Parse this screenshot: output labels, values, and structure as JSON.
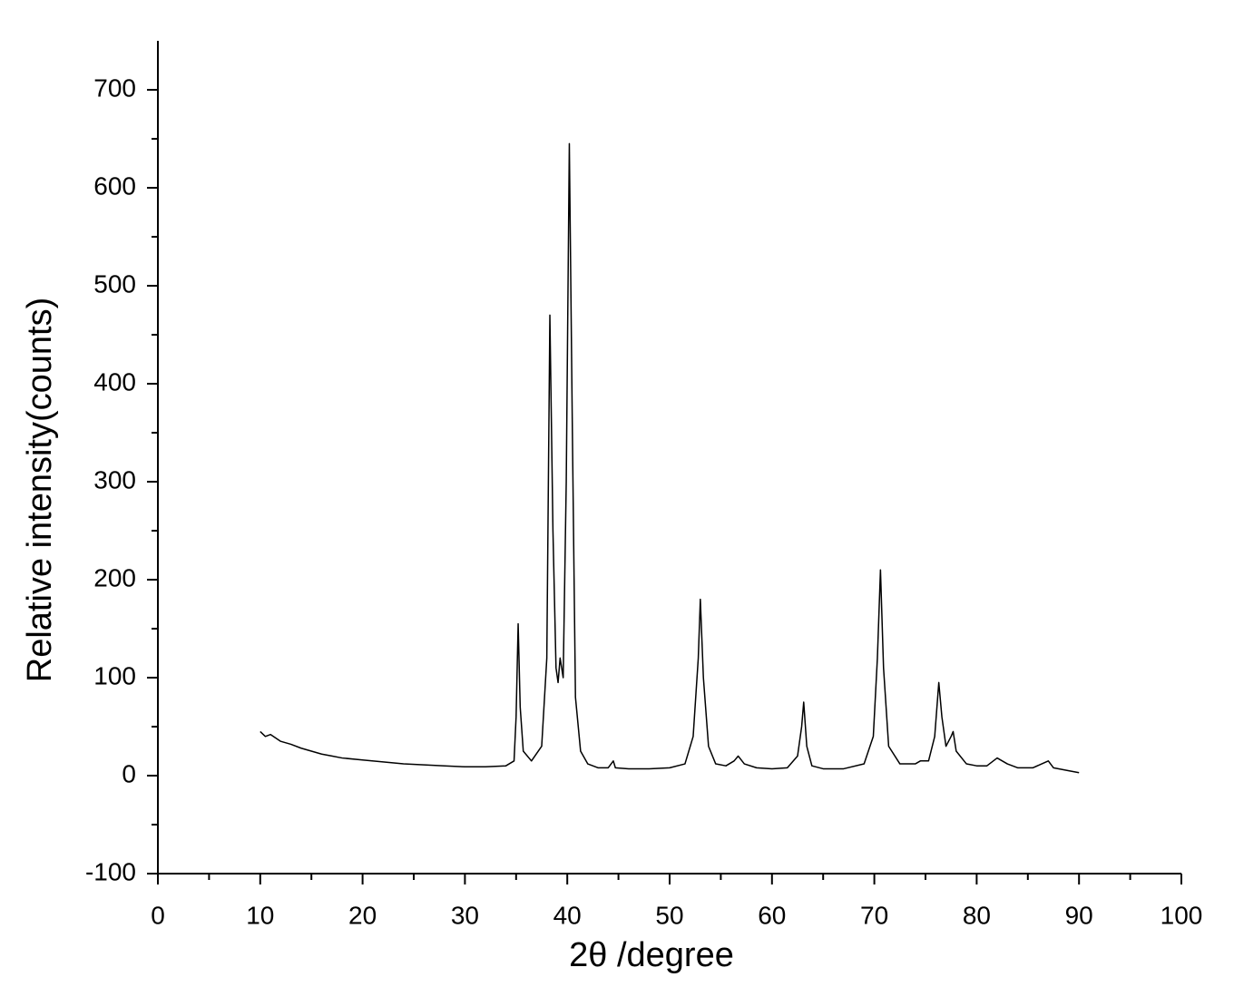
{
  "chart_data": {
    "type": "line",
    "x_label": "2θ /degree",
    "y_label": "Relative intensity(counts)",
    "color": "#000000",
    "xlim": [
      0,
      100
    ],
    "xticks": [
      0,
      10,
      20,
      30,
      40,
      50,
      60,
      70,
      80,
      90,
      100
    ],
    "ylim": [
      -100,
      750
    ],
    "yticks": [
      -100,
      0,
      100,
      200,
      300,
      400,
      500,
      600,
      700
    ],
    "grid": false,
    "x": [
      10,
      10.5,
      11,
      12,
      13,
      14,
      15,
      16,
      17,
      18,
      20,
      22,
      24,
      26,
      28,
      30,
      32,
      34,
      34.8,
      35.0,
      35.2,
      35.4,
      35.7,
      36.5,
      37.5,
      38.0,
      38.3,
      38.6,
      38.9,
      39.1,
      39.3,
      39.6,
      39.9,
      40.2,
      40.5,
      40.8,
      41.3,
      42,
      43,
      44,
      44.5,
      44.7,
      46,
      48,
      50,
      51.5,
      52.3,
      52.8,
      53.0,
      53.3,
      53.8,
      54.5,
      55.5,
      56.3,
      56.7,
      57.3,
      58.5,
      60,
      61.5,
      62.5,
      62.9,
      63.1,
      63.4,
      63.9,
      65,
      67,
      69,
      69.9,
      70.3,
      70.6,
      70.9,
      71.4,
      72.5,
      74,
      74.5,
      75.3,
      75.9,
      76.3,
      76.6,
      77.0,
      77.5,
      77.7,
      78.0,
      79,
      80,
      81,
      82,
      83,
      84,
      85.5,
      87,
      87.5,
      89,
      90
    ],
    "values": [
      45,
      40,
      42,
      35,
      32,
      28,
      25,
      22,
      20,
      18,
      16,
      14,
      12,
      11,
      10,
      9,
      9,
      10,
      15,
      60,
      155,
      70,
      25,
      15,
      30,
      120,
      470,
      250,
      110,
      95,
      120,
      100,
      300,
      645,
      350,
      80,
      25,
      12,
      8,
      8,
      15,
      8,
      7,
      7,
      8,
      12,
      40,
      120,
      180,
      100,
      30,
      12,
      10,
      15,
      20,
      12,
      8,
      7,
      8,
      20,
      50,
      75,
      30,
      10,
      7,
      7,
      12,
      40,
      120,
      210,
      110,
      30,
      12,
      12,
      15,
      15,
      40,
      95,
      60,
      30,
      40,
      45,
      25,
      12,
      10,
      10,
      18,
      12,
      8,
      8,
      15,
      8,
      5,
      3
    ]
  }
}
